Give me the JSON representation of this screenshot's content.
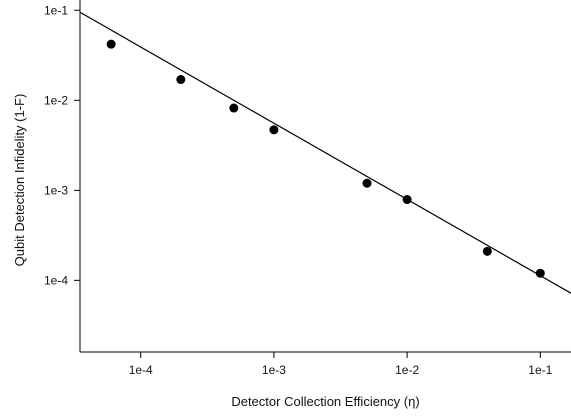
{
  "chart_data": {
    "type": "scatter",
    "title": "",
    "xlabel": "Detector Collection Efficiency (η)",
    "ylabel": "Qubit Detection Infidelity (1-F)",
    "xscale": "log",
    "yscale": "log",
    "xlim": [
      3.5e-05,
      0.17
    ],
    "ylim": [
      1.6e-05,
      0.13
    ],
    "xticks": [
      0.0001,
      0.001,
      0.01,
      0.1
    ],
    "xtick_labels": [
      "1e-4",
      "1e-3",
      "1e-2",
      "1e-1"
    ],
    "yticks": [
      0.0001,
      0.001,
      0.01,
      0.1
    ],
    "ytick_labels": [
      "1e-4",
      "1e-3",
      "1e-2",
      "1e-1"
    ],
    "grid": false,
    "legend": "none",
    "series": [
      {
        "kind": "points",
        "x": [
          6e-05,
          0.0002,
          0.0005,
          0.001,
          0.005,
          0.01,
          0.04,
          0.1
        ],
        "y": [
          0.042,
          0.017,
          0.0082,
          0.0047,
          0.0012,
          0.00079,
          0.00021,
          0.00012
        ]
      },
      {
        "kind": "line",
        "x": [
          3.5e-05,
          0.17
        ],
        "y": [
          0.095,
          7.2e-05
        ]
      }
    ],
    "colors": {
      "markers": "#000000",
      "line": "#000000",
      "axes": "#000000"
    }
  }
}
